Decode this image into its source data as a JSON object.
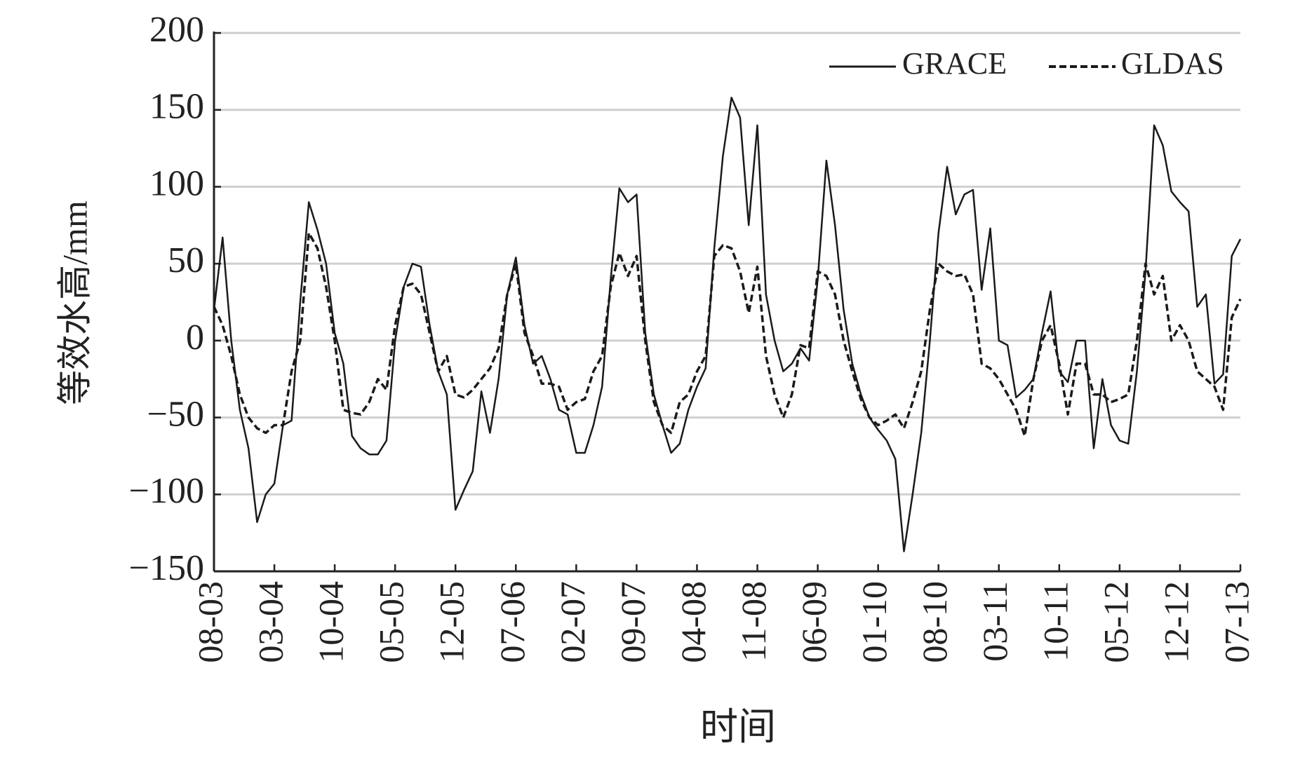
{
  "chart_data": {
    "type": "line",
    "xlabel": "时间",
    "ylabel": "等效水高/mm",
    "categories": [
      "08-03",
      null,
      null,
      null,
      null,
      null,
      null,
      "03-04",
      null,
      null,
      null,
      null,
      null,
      null,
      "10-04",
      null,
      null,
      null,
      null,
      null,
      null,
      "05-05",
      null,
      null,
      null,
      null,
      null,
      null,
      "12-05",
      null,
      null,
      null,
      null,
      null,
      null,
      "07-06",
      null,
      null,
      null,
      null,
      null,
      null,
      "02-07",
      null,
      null,
      null,
      null,
      null,
      null,
      "09-07",
      null,
      null,
      null,
      null,
      null,
      null,
      "04-08",
      null,
      null,
      null,
      null,
      null,
      null,
      "11-08",
      null,
      null,
      null,
      null,
      null,
      null,
      "06-09",
      null,
      null,
      null,
      null,
      null,
      null,
      "01-10",
      null,
      null,
      null,
      null,
      null,
      null,
      "08-10",
      null,
      null,
      null,
      null,
      null,
      null,
      "03-11",
      null,
      null,
      null,
      null,
      null,
      null,
      "10-11",
      null,
      null,
      null,
      null,
      null,
      null,
      "05-12",
      null,
      null,
      null,
      null,
      null,
      null,
      "12-12",
      null,
      null,
      null,
      null,
      null,
      null,
      "07-13"
    ],
    "series": [
      {
        "name": "GRACE",
        "color": "#1a1a1a",
        "dash": "solid",
        "values": [
          20,
          67,
          0,
          -45,
          -70,
          -118,
          -100,
          -93,
          -55,
          -52,
          25,
          90,
          72,
          50,
          5,
          -15,
          -62,
          -70,
          -74,
          -74,
          -65,
          0,
          35,
          50,
          48,
          10,
          -20,
          -35,
          -110,
          -97,
          -85,
          -33,
          -60,
          -25,
          30,
          54,
          10,
          -15,
          -10,
          -25,
          -45,
          -48,
          -73,
          -73,
          -55,
          -30,
          40,
          99,
          90,
          95,
          5,
          -35,
          -55,
          -73,
          -67,
          -45,
          -30,
          -18,
          60,
          120,
          158,
          145,
          75,
          140,
          30,
          0,
          -20,
          -15,
          -5,
          -13,
          40,
          117,
          75,
          20,
          -15,
          -35,
          -50,
          -58,
          -65,
          -77,
          -137,
          -100,
          -60,
          0,
          70,
          113,
          82,
          95,
          98,
          33,
          73,
          0,
          -3,
          -37,
          -32,
          -25,
          5,
          32,
          -20,
          -27,
          0,
          0,
          -70,
          -25,
          -55,
          -65,
          -67,
          -20,
          45,
          140,
          127,
          97,
          90,
          84,
          22,
          30,
          -28,
          -22,
          55,
          66
        ]
      },
      {
        "name": "GLDAS",
        "color": "#1a1a1a",
        "dash": "dashed",
        "values": [
          22,
          10,
          -10,
          -35,
          -50,
          -57,
          -60,
          -55,
          -55,
          -20,
          0,
          70,
          60,
          35,
          0,
          -45,
          -47,
          -48,
          -40,
          -25,
          -32,
          10,
          35,
          37,
          30,
          5,
          -20,
          -10,
          -35,
          -37,
          -32,
          -25,
          -18,
          -5,
          30,
          50,
          5,
          -10,
          -28,
          -28,
          -30,
          -45,
          -40,
          -38,
          -20,
          -10,
          35,
          57,
          42,
          55,
          0,
          -40,
          -55,
          -60,
          -40,
          -35,
          -20,
          -10,
          55,
          62,
          60,
          45,
          18,
          48,
          -10,
          -35,
          -50,
          -35,
          -3,
          -5,
          45,
          42,
          30,
          0,
          -20,
          -38,
          -50,
          -55,
          -52,
          -48,
          -57,
          -40,
          -20,
          20,
          50,
          45,
          42,
          43,
          30,
          -15,
          -18,
          -25,
          -35,
          -45,
          -62,
          -25,
          0,
          10,
          -15,
          -48,
          -15,
          -15,
          -35,
          -35,
          -40,
          -38,
          -35,
          0,
          50,
          30,
          42,
          0,
          10,
          0,
          -20,
          -25,
          -30,
          -45,
          15,
          27
        ]
      }
    ],
    "ylim": [
      -150,
      200
    ],
    "yticks": [
      {
        "value": -150,
        "label": "−150"
      },
      {
        "value": -100,
        "label": "−100"
      },
      {
        "value": -50,
        "label": "−50"
      },
      0,
      50,
      100,
      150,
      200
    ],
    "grid": true,
    "legend": "upper right"
  }
}
